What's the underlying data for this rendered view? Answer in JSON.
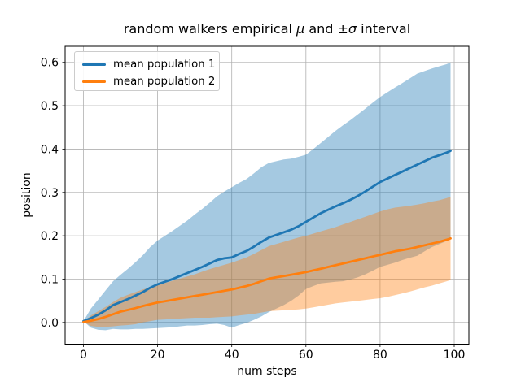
{
  "figure": {
    "title": {
      "prefix": "random walkers empirical ",
      "mu": "μ",
      "mid": " and ±",
      "sigma": "σ",
      "suffix": " interval"
    },
    "xlabel": "num steps",
    "ylabel": "position"
  },
  "legend": {
    "position": "upper left",
    "entries": [
      {
        "label": "mean population 1",
        "color": "#1f77b4"
      },
      {
        "label": "mean population 2",
        "color": "#ff7f0e"
      }
    ]
  },
  "chart_data": {
    "type": "line",
    "title": "random walkers empirical μ and ±σ interval",
    "xlabel": "num steps",
    "ylabel": "position",
    "grid": true,
    "legend_position": "upper left",
    "xlim": [
      -4.94,
      103.95
    ],
    "ylim": [
      -0.05,
      0.637
    ],
    "xticks": [
      0,
      20,
      40,
      60,
      80,
      100
    ],
    "xtick_labels": [
      "0",
      "20",
      "40",
      "60",
      "80",
      "100"
    ],
    "yticks": [
      0.0,
      0.1,
      0.2,
      0.3,
      0.4,
      0.5,
      0.6
    ],
    "ytick_labels": [
      "0.0",
      "0.1",
      "0.2",
      "0.3",
      "0.4",
      "0.5",
      "0.6"
    ],
    "band_alpha": 0.4,
    "band_meaning": "mean ± one empirical standard deviation",
    "x": [
      0,
      2,
      4,
      6,
      8,
      10,
      12,
      14,
      16,
      18,
      20,
      22,
      24,
      26,
      28,
      30,
      32,
      34,
      36,
      38,
      40,
      42,
      44,
      46,
      48,
      50,
      52,
      54,
      56,
      58,
      60,
      62,
      64,
      66,
      68,
      70,
      72,
      74,
      76,
      78,
      80,
      82,
      84,
      86,
      88,
      90,
      92,
      94,
      96,
      98,
      99
    ],
    "series": [
      {
        "name": "mean population 1",
        "color": "#1f77b4",
        "mean": [
          0.003,
          0.01,
          0.018,
          0.028,
          0.04,
          0.047,
          0.054,
          0.062,
          0.07,
          0.08,
          0.088,
          0.094,
          0.1,
          0.107,
          0.114,
          0.121,
          0.128,
          0.136,
          0.144,
          0.148,
          0.15,
          0.158,
          0.165,
          0.175,
          0.186,
          0.196,
          0.202,
          0.208,
          0.214,
          0.222,
          0.232,
          0.242,
          0.252,
          0.26,
          0.268,
          0.275,
          0.283,
          0.292,
          0.302,
          0.313,
          0.324,
          0.332,
          0.34,
          0.348,
          0.356,
          0.364,
          0.372,
          0.38,
          0.386,
          0.392,
          0.396
        ],
        "sigma": [
          0.0,
          0.022,
          0.035,
          0.046,
          0.055,
          0.063,
          0.07,
          0.077,
          0.085,
          0.094,
          0.101,
          0.106,
          0.111,
          0.116,
          0.121,
          0.128,
          0.134,
          0.14,
          0.147,
          0.154,
          0.162,
          0.164,
          0.166,
          0.169,
          0.172,
          0.172,
          0.17,
          0.168,
          0.164,
          0.16,
          0.155,
          0.158,
          0.162,
          0.168,
          0.174,
          0.18,
          0.184,
          0.188,
          0.191,
          0.194,
          0.196,
          0.199,
          0.202,
          0.204,
          0.207,
          0.21,
          0.208,
          0.206,
          0.205,
          0.204,
          0.204
        ]
      },
      {
        "name": "mean population 2",
        "color": "#ff7f0e",
        "mean": [
          0.001,
          0.004,
          0.008,
          0.013,
          0.019,
          0.025,
          0.029,
          0.033,
          0.038,
          0.042,
          0.046,
          0.049,
          0.052,
          0.055,
          0.058,
          0.061,
          0.064,
          0.067,
          0.07,
          0.073,
          0.076,
          0.08,
          0.084,
          0.089,
          0.095,
          0.101,
          0.104,
          0.107,
          0.11,
          0.113,
          0.116,
          0.12,
          0.124,
          0.128,
          0.132,
          0.136,
          0.14,
          0.144,
          0.148,
          0.152,
          0.156,
          0.16,
          0.164,
          0.167,
          0.17,
          0.174,
          0.178,
          0.182,
          0.186,
          0.191,
          0.194
        ],
        "sigma": [
          0.0,
          0.012,
          0.018,
          0.023,
          0.028,
          0.032,
          0.035,
          0.037,
          0.038,
          0.039,
          0.04,
          0.042,
          0.044,
          0.046,
          0.048,
          0.05,
          0.053,
          0.056,
          0.058,
          0.06,
          0.062,
          0.064,
          0.066,
          0.069,
          0.072,
          0.075,
          0.077,
          0.079,
          0.081,
          0.083,
          0.084,
          0.085,
          0.086,
          0.087,
          0.088,
          0.09,
          0.092,
          0.094,
          0.096,
          0.098,
          0.1,
          0.101,
          0.101,
          0.1,
          0.099,
          0.098,
          0.097,
          0.097,
          0.096,
          0.096,
          0.096
        ]
      }
    ]
  }
}
